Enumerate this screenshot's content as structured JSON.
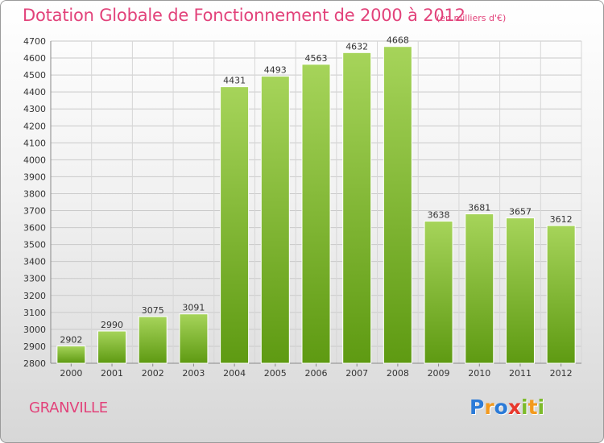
{
  "title": "Dotation Globale de Fonctionnement de 2000 à 2012",
  "unit_note": "(en milliers d'€)",
  "city": "GRANVILLE",
  "logo": {
    "text": "Proxiti",
    "colors": [
      "#2b7bd8",
      "#f39a1e",
      "#2b7bd8",
      "#e8382c",
      "#7dbb2b",
      "#f39a1e",
      "#7dbb2b"
    ]
  },
  "colors": {
    "bar_light": "#a6d45a",
    "bar_dark": "#5e9a12",
    "title": "#e2427a"
  },
  "chart_data": {
    "type": "bar",
    "title": "Dotation Globale de Fonctionnement de 2000 à 2012",
    "xlabel": "",
    "ylabel": "",
    "categories": [
      "2000",
      "2001",
      "2002",
      "2003",
      "2004",
      "2005",
      "2006",
      "2007",
      "2008",
      "2009",
      "2010",
      "2011",
      "2012"
    ],
    "values": [
      2902,
      2990,
      3075,
      3091,
      4431,
      4493,
      4563,
      4632,
      4668,
      3638,
      3681,
      3657,
      3612
    ],
    "ylim": [
      2800,
      4700
    ],
    "yticks": [
      2800,
      2900,
      3000,
      3100,
      3200,
      3300,
      3400,
      3500,
      3600,
      3700,
      3800,
      3900,
      4000,
      4100,
      4200,
      4300,
      4400,
      4500,
      4600,
      4700
    ],
    "grid": true,
    "legend": "none"
  }
}
